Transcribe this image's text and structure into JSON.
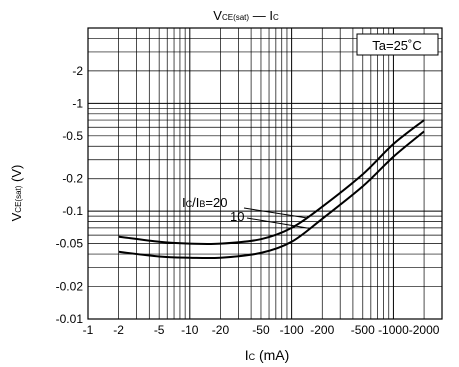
{
  "chart_data": {
    "type": "line",
    "title": {
      "part1": "V",
      "part1_sub": "CE(sat)",
      "sep": " — ",
      "part2": "I",
      "part2_sub": "C"
    },
    "xlabel": {
      "main": "I",
      "sub": "C",
      "rest": " (mA)"
    },
    "ylabel": {
      "main": "V",
      "sub": "CE(sat)",
      "rest": " (V)"
    },
    "x_scale": "log",
    "y_scale": "log",
    "x_ticks": [
      {
        "v": -1,
        "label": "-1"
      },
      {
        "v": -2,
        "label": "-2"
      },
      {
        "v": -5,
        "label": "-5"
      },
      {
        "v": -10,
        "label": "-10"
      },
      {
        "v": -20,
        "label": "-20"
      },
      {
        "v": -50,
        "label": "-50"
      },
      {
        "v": -100,
        "label": "-100"
      },
      {
        "v": -200,
        "label": "-200"
      },
      {
        "v": -500,
        "label": "-500"
      },
      {
        "v": -1000,
        "label": "-1000"
      },
      {
        "v": -2000,
        "label": "-2000"
      }
    ],
    "y_ticks": [
      {
        "v": -0.01,
        "label": "-0.01"
      },
      {
        "v": -0.02,
        "label": "-0.02"
      },
      {
        "v": -0.05,
        "label": "-0.05"
      },
      {
        "v": -0.1,
        "label": "-0.1"
      },
      {
        "v": -0.2,
        "label": "-0.2"
      },
      {
        "v": -0.5,
        "label": "-0.5"
      },
      {
        "v": -1,
        "label": "-1"
      },
      {
        "v": -2,
        "label": "-2"
      }
    ],
    "xlim": [
      -1,
      -3000
    ],
    "ylim": [
      -0.01,
      -5
    ],
    "grid": true,
    "annotation_box": "Ta=25˚C",
    "series_label": {
      "main": "I",
      "sub1": "C",
      "mid": "/I",
      "sub2": "B",
      "rest": "=20"
    },
    "series": [
      {
        "name": "20",
        "x": [
          -2,
          -5,
          -10,
          -20,
          -50,
          -100,
          -200,
          -500,
          -1000,
          -2000
        ],
        "y": [
          -0.058,
          -0.052,
          -0.05,
          -0.05,
          -0.055,
          -0.07,
          -0.11,
          -0.22,
          -0.42,
          -0.7
        ]
      },
      {
        "name": "10",
        "x": [
          -2,
          -5,
          -10,
          -20,
          -50,
          -100,
          -200,
          -500,
          -1000,
          -2000
        ],
        "y": [
          -0.042,
          -0.038,
          -0.037,
          -0.037,
          -0.041,
          -0.052,
          -0.085,
          -0.17,
          -0.32,
          -0.55
        ]
      }
    ]
  }
}
